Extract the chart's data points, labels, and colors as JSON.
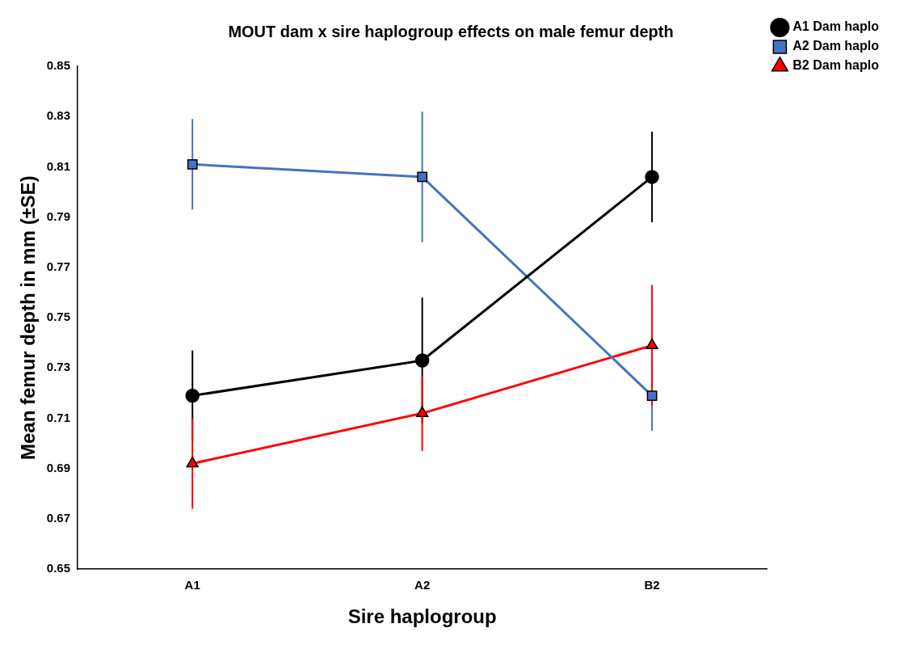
{
  "chart_data": {
    "type": "line",
    "title": "MOUT dam x sire haplogroup effects on male femur depth",
    "xlabel": "Sire haplogroup",
    "ylabel": "Mean femur depth in mm (±SE)",
    "categories": [
      "A1",
      "A2",
      "B2"
    ],
    "series": [
      {
        "name": "A1 Dam haplo",
        "color": "#000000",
        "marker": "circle",
        "values": [
          0.719,
          0.733,
          0.806
        ],
        "errors": [
          0.018,
          0.025,
          0.018
        ]
      },
      {
        "name": "A2 Dam haplo",
        "color": "#4472c4",
        "marker": "square",
        "values": [
          0.811,
          0.806,
          0.719
        ],
        "errors": [
          0.018,
          0.026,
          0.014
        ]
      },
      {
        "name": "B2 Dam haplo",
        "color": "#ff0000",
        "marker": "triangle",
        "values": [
          0.692,
          0.712,
          0.739
        ],
        "errors": [
          0.018,
          0.015,
          0.024
        ]
      }
    ],
    "ylim": [
      0.65,
      0.85
    ],
    "yticks": [
      0.65,
      0.67,
      0.69,
      0.71,
      0.73,
      0.75,
      0.77,
      0.79,
      0.81,
      0.83,
      0.85
    ],
    "grid": false,
    "legend": "top right",
    "line_style": "solid"
  }
}
